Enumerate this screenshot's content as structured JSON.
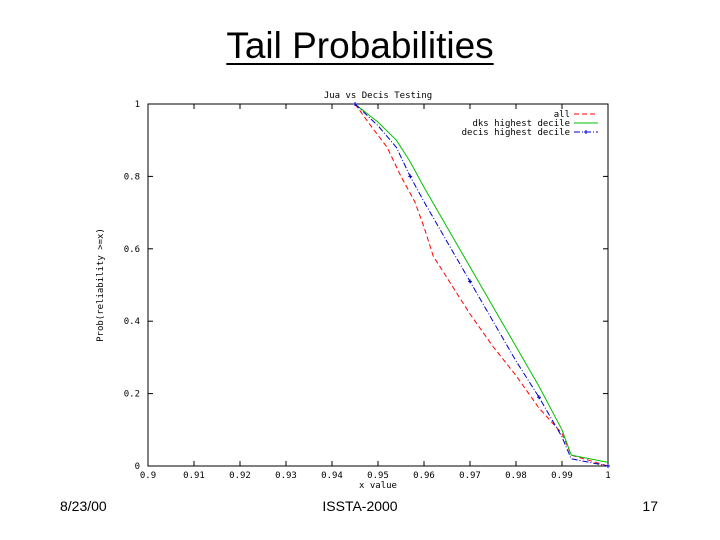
{
  "slide": {
    "title": "Tail Probabilities",
    "footer_left": "8/23/00",
    "footer_center": "ISSTA-2000",
    "footer_right": "17"
  },
  "chart_data": {
    "type": "line",
    "title": "Jua vs Decis Testing",
    "xlabel": "x value",
    "ylabel": "Prob(reliability >=x)",
    "xlim": [
      0.9,
      1.0
    ],
    "ylim": [
      0,
      1
    ],
    "x_ticks": [
      "0.9",
      "0.91",
      "0.92",
      "0.93",
      "0.94",
      "0.95",
      "0.96",
      "0.97",
      "0.98",
      "0.99",
      "1"
    ],
    "y_ticks": [
      "0",
      "0.2",
      "0.4",
      "0.6",
      "0.8",
      "1"
    ],
    "legend_position": "top-right",
    "grid": false,
    "series": [
      {
        "name": "all",
        "color": "#ff0000",
        "dash": "dashed",
        "x": [
          0.945,
          0.949,
          0.952,
          0.955,
          0.958,
          0.96,
          0.962,
          0.965,
          0.97,
          0.975,
          0.98,
          0.985,
          0.99,
          0.992,
          1.0
        ],
        "y": [
          1.0,
          0.93,
          0.88,
          0.8,
          0.73,
          0.66,
          0.58,
          0.52,
          0.42,
          0.33,
          0.25,
          0.16,
          0.09,
          0.03,
          0.0
        ]
      },
      {
        "name": "dks highest decile",
        "color": "#00c000",
        "dash": "solid",
        "x": [
          0.945,
          0.95,
          0.954,
          0.957,
          0.96,
          0.965,
          0.97,
          0.975,
          0.98,
          0.985,
          0.99,
          0.992,
          1.0
        ],
        "y": [
          1.0,
          0.95,
          0.9,
          0.84,
          0.77,
          0.66,
          0.55,
          0.44,
          0.33,
          0.22,
          0.1,
          0.03,
          0.01
        ]
      },
      {
        "name": "decis highest decile",
        "color": "#0000cc",
        "dash": "dashdot",
        "marker": "+",
        "x": [
          0.945,
          0.95,
          0.954,
          0.957,
          0.96,
          0.965,
          0.97,
          0.975,
          0.98,
          0.985,
          0.99,
          0.992,
          1.0
        ],
        "y": [
          1.0,
          0.94,
          0.88,
          0.8,
          0.73,
          0.62,
          0.51,
          0.4,
          0.29,
          0.19,
          0.08,
          0.02,
          0.0
        ]
      }
    ]
  }
}
